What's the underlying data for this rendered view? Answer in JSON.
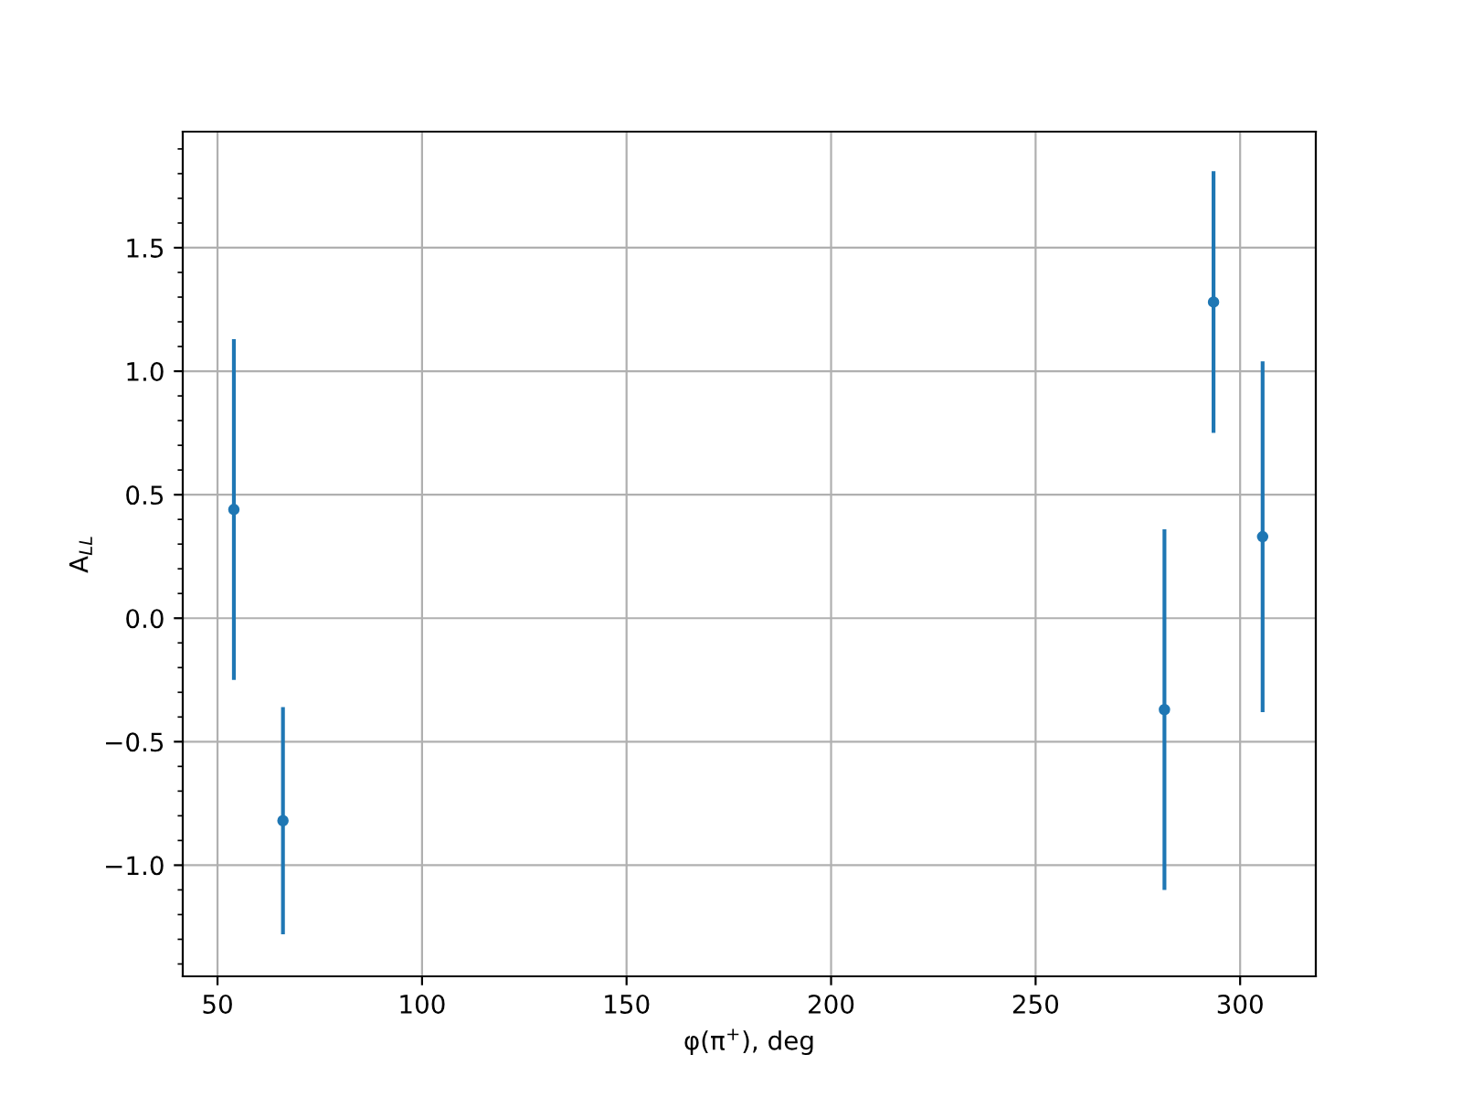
{
  "chart_data": {
    "type": "scatter",
    "xlabel": "φ(π$^{+}$), deg",
    "ylabel": "A$_{LL}$",
    "x": [
      54,
      66,
      281.5,
      293.5,
      305.5
    ],
    "series": [
      {
        "color": "#1f77b4",
        "values": [
          0.44,
          -0.82,
          -0.37,
          1.28,
          0.33
        ],
        "errors": [
          0.69,
          0.46,
          0.73,
          0.53,
          0.71
        ]
      }
    ],
    "xlim": [
      41.5,
      318.5
    ],
    "ylim": [
      -1.45,
      1.97
    ],
    "xticks": [
      50,
      100,
      150,
      200,
      250,
      300
    ],
    "yticks": [
      {
        "value": -1.4,
        "label": null
      },
      {
        "value": -1.3,
        "label": null
      },
      {
        "value": -1.2,
        "label": null
      },
      {
        "value": -1.1,
        "label": null
      },
      {
        "value": -1.0,
        "label": "−1.0"
      },
      {
        "value": -0.9,
        "label": null
      },
      {
        "value": -0.8,
        "label": null
      },
      {
        "value": -0.7,
        "label": null
      },
      {
        "value": -0.6,
        "label": null
      },
      {
        "value": -0.5,
        "label": "−0.5"
      },
      {
        "value": -0.4,
        "label": null
      },
      {
        "value": -0.3,
        "label": null
      },
      {
        "value": -0.2,
        "label": null
      },
      {
        "value": -0.1,
        "label": null
      },
      {
        "value": 0.0,
        "label": "0.0"
      },
      {
        "value": 0.1,
        "label": null
      },
      {
        "value": 0.2,
        "label": null
      },
      {
        "value": 0.3,
        "label": null
      },
      {
        "value": 0.4,
        "label": null
      },
      {
        "value": 0.5,
        "label": "0.5"
      },
      {
        "value": 0.6,
        "label": null
      },
      {
        "value": 0.7,
        "label": null
      },
      {
        "value": 0.8,
        "label": null
      },
      {
        "value": 0.9,
        "label": null
      },
      {
        "value": 1.0,
        "label": "1.0"
      },
      {
        "value": 1.1,
        "label": null
      },
      {
        "value": 1.2,
        "label": null
      },
      {
        "value": 1.3,
        "label": null
      },
      {
        "value": 1.4,
        "label": null
      },
      {
        "value": 1.5,
        "label": "1.5"
      },
      {
        "value": 1.6,
        "label": null
      },
      {
        "value": 1.7,
        "label": null
      },
      {
        "value": 1.8,
        "label": null
      },
      {
        "value": 1.9,
        "label": null
      }
    ],
    "grid": true,
    "marker": "circle"
  }
}
